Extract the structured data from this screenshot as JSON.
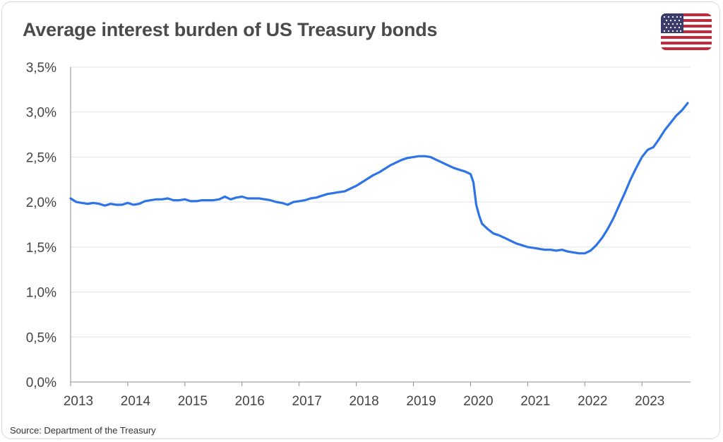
{
  "colors": {
    "line": "#2f74e6",
    "grid": "#e3e3e3",
    "axis": "#8c8c8c",
    "title": "#4a4a4a"
  },
  "icons": {
    "flag": "us-flag-icon"
  },
  "source": "Source: Department of the Treasury",
  "chart_data": {
    "type": "line",
    "title": "Average interest burden of US Treasury bonds",
    "xlabel": "",
    "ylabel": "",
    "xlim": [
      2013,
      2023.85
    ],
    "ylim": [
      0,
      3.5
    ],
    "grid": true,
    "legend": "none",
    "yticks": [
      0,
      0.5,
      1.0,
      1.5,
      2.0,
      2.5,
      3.0,
      3.5
    ],
    "ytick_labels": [
      "0,0%",
      "0,5%",
      "1,0%",
      "1,5%",
      "2,0%",
      "2,5%",
      "3,0%",
      "3,5%"
    ],
    "xticks": [
      2013,
      2014,
      2015,
      2016,
      2017,
      2018,
      2019,
      2020,
      2021,
      2022,
      2023
    ],
    "xtick_labels": [
      "2013",
      "2014",
      "2015",
      "2016",
      "2017",
      "2018",
      "2019",
      "2020",
      "2021",
      "2022",
      "2023"
    ],
    "series": [
      {
        "x": [
          2013.0,
          2013.1,
          2013.2,
          2013.3,
          2013.4,
          2013.5,
          2013.6,
          2013.7,
          2013.8,
          2013.9,
          2014.0,
          2014.1,
          2014.2,
          2014.3,
          2014.4,
          2014.5,
          2014.6,
          2014.7,
          2014.8,
          2014.9,
          2015.0,
          2015.1,
          2015.2,
          2015.3,
          2015.4,
          2015.5,
          2015.6,
          2015.7,
          2015.8,
          2015.9,
          2016.0,
          2016.1,
          2016.2,
          2016.3,
          2016.4,
          2016.5,
          2016.6,
          2016.7,
          2016.8,
          2016.9,
          2017.0,
          2017.1,
          2017.2,
          2017.3,
          2017.4,
          2017.5,
          2017.6,
          2017.7,
          2017.8,
          2017.9,
          2018.0,
          2018.1,
          2018.2,
          2018.3,
          2018.4,
          2018.5,
          2018.6,
          2018.7,
          2018.8,
          2018.9,
          2019.0,
          2019.1,
          2019.2,
          2019.3,
          2019.4,
          2019.5,
          2019.6,
          2019.7,
          2019.8,
          2019.9,
          2020.0,
          2020.05,
          2020.1,
          2020.15,
          2020.2,
          2020.3,
          2020.4,
          2020.5,
          2020.6,
          2020.7,
          2020.8,
          2020.9,
          2021.0,
          2021.1,
          2021.2,
          2021.3,
          2021.4,
          2021.5,
          2021.6,
          2021.7,
          2021.8,
          2021.9,
          2022.0,
          2022.1,
          2022.2,
          2022.3,
          2022.4,
          2022.5,
          2022.6,
          2022.7,
          2022.8,
          2022.9,
          2023.0,
          2023.1,
          2023.2,
          2023.3,
          2023.4,
          2023.5,
          2023.6,
          2023.7,
          2023.8
        ],
        "y": [
          2.04,
          2.0,
          1.99,
          1.98,
          1.99,
          1.98,
          1.96,
          1.98,
          1.97,
          1.97,
          1.99,
          1.97,
          1.98,
          2.01,
          2.02,
          2.03,
          2.03,
          2.04,
          2.02,
          2.02,
          2.03,
          2.01,
          2.01,
          2.02,
          2.02,
          2.02,
          2.03,
          2.06,
          2.03,
          2.05,
          2.06,
          2.04,
          2.04,
          2.04,
          2.03,
          2.02,
          2.0,
          1.99,
          1.97,
          2.0,
          2.01,
          2.02,
          2.04,
          2.05,
          2.07,
          2.09,
          2.1,
          2.11,
          2.12,
          2.15,
          2.18,
          2.22,
          2.26,
          2.3,
          2.33,
          2.37,
          2.41,
          2.44,
          2.47,
          2.49,
          2.5,
          2.51,
          2.51,
          2.5,
          2.47,
          2.44,
          2.41,
          2.38,
          2.36,
          2.34,
          2.31,
          2.22,
          1.97,
          1.85,
          1.76,
          1.7,
          1.65,
          1.63,
          1.6,
          1.57,
          1.54,
          1.52,
          1.5,
          1.49,
          1.48,
          1.47,
          1.47,
          1.46,
          1.47,
          1.45,
          1.44,
          1.43,
          1.43,
          1.46,
          1.52,
          1.6,
          1.7,
          1.82,
          1.96,
          2.1,
          2.25,
          2.38,
          2.5,
          2.58,
          2.61,
          2.7,
          2.8,
          2.88,
          2.96,
          3.02,
          3.1
        ]
      }
    ]
  }
}
